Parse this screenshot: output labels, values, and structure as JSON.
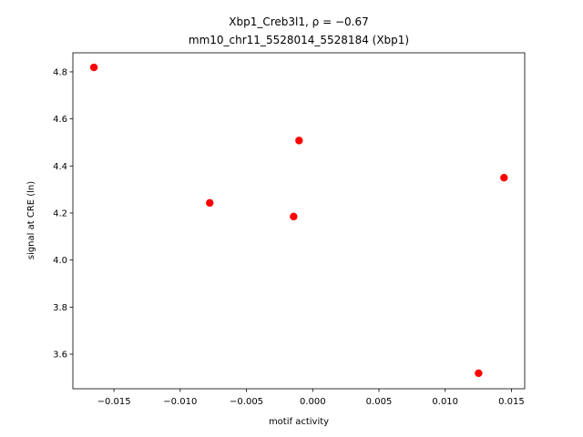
{
  "chart_data": {
    "type": "scatter",
    "title": "Xbp1_Creb3l1, ρ = −0.67",
    "subtitle": "mm10_chr11_5528014_5528184 (Xbp1)",
    "x_label": "motif activity",
    "y_label": "signal at CRE (ln)",
    "series": [
      {
        "name": "points",
        "color": "#ff0000",
        "x": [
          -0.01651,
          -0.00103,
          -0.00777,
          -0.00144,
          0.01444,
          0.01252
        ],
        "values": [
          4.819,
          4.508,
          4.243,
          4.185,
          4.35,
          3.519
        ]
      }
    ],
    "xlim": [
      -0.0181,
      0.016
    ],
    "ylim": [
      3.453,
      4.881
    ],
    "xticks": [
      {
        "value": -0.015,
        "label": "−0.015"
      },
      {
        "value": -0.01,
        "label": "−0.010"
      },
      {
        "value": -0.005,
        "label": "−0.005"
      },
      {
        "value": 0,
        "label": "0.000"
      },
      0.005,
      {
        "value": 0.01,
        "label": "0.010"
      },
      0.015
    ],
    "yticks": [
      3.6,
      3.8,
      {
        "value": 4,
        "label": "4.0"
      },
      4.2,
      4.4,
      4.6,
      4.8
    ],
    "grid": false
  }
}
